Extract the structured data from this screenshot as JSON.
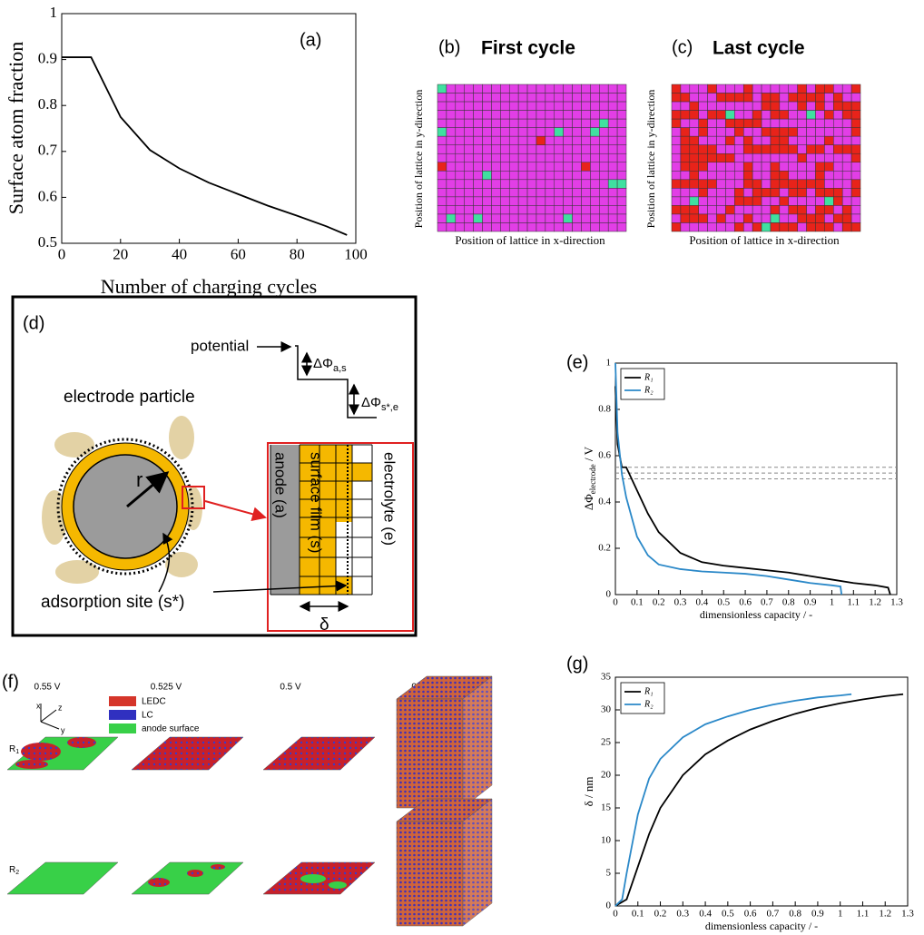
{
  "chart_data": [
    {
      "type": "line",
      "annotation": "(a)",
      "y_label": "Surface atom fraction",
      "x_label": "Number of charging cycles",
      "x": [
        0,
        10,
        20,
        30,
        40,
        50,
        60,
        70,
        80,
        90,
        97
      ],
      "values": [
        0.905,
        0.905,
        0.775,
        0.703,
        0.663,
        0.632,
        0.607,
        0.582,
        0.56,
        0.537,
        0.518
      ],
      "color": "#000000",
      "xlim": [
        0,
        100
      ],
      "ylim": [
        0.5,
        1
      ],
      "xticks": [
        0,
        20,
        40,
        60,
        80,
        100
      ],
      "yticks": [
        0.5,
        0.6,
        0.7,
        0.8,
        0.9,
        1
      ]
    },
    {
      "type": "line",
      "annotation": "(e)",
      "y_label": {
        "main": "ΔΦ",
        "sub": "electrode",
        "rest": " / V"
      },
      "x_label": "dimensionless capacity / -",
      "series": [
        {
          "name": "R₁",
          "color": "#000000",
          "x": [
            0,
            0.01,
            0.03,
            0.05,
            0.1,
            0.15,
            0.2,
            0.3,
            0.4,
            0.5,
            0.6,
            0.7,
            0.8,
            0.9,
            1.0,
            1.1,
            1.2,
            1.26,
            1.27
          ],
          "values": [
            0.9,
            0.65,
            0.55,
            0.55,
            0.45,
            0.35,
            0.27,
            0.18,
            0.14,
            0.125,
            0.115,
            0.105,
            0.095,
            0.08,
            0.065,
            0.05,
            0.04,
            0.03,
            0.0
          ]
        },
        {
          "name": "R₂",
          "color": "#2a88c8",
          "x": [
            0,
            0.01,
            0.03,
            0.05,
            0.1,
            0.15,
            0.2,
            0.3,
            0.4,
            0.5,
            0.6,
            0.7,
            0.8,
            0.9,
            1.0,
            1.04,
            1.045
          ],
          "values": [
            1.0,
            0.7,
            0.52,
            0.42,
            0.25,
            0.17,
            0.13,
            0.11,
            0.1,
            0.095,
            0.09,
            0.08,
            0.065,
            0.05,
            0.04,
            0.035,
            0.0
          ]
        }
      ],
      "reference_lines": [
        0.55,
        0.525,
        0.5
      ],
      "legend": "upper left",
      "xlim": [
        0,
        1.3
      ],
      "ylim": [
        0,
        1
      ],
      "xticks": [
        0,
        0.1,
        0.2,
        0.3,
        0.4,
        0.5,
        0.6,
        0.7,
        0.8,
        0.9,
        1,
        1.1,
        1.2,
        1.3
      ],
      "yticks": [
        0,
        0.2,
        0.4,
        0.6,
        0.8,
        1
      ]
    },
    {
      "type": "line",
      "annotation": "(g)",
      "y_label": "δ / nm",
      "x_label": "dimensionless capacity / -",
      "series": [
        {
          "name": "R₁",
          "color": "#000000",
          "x": [
            0,
            0.05,
            0.1,
            0.15,
            0.2,
            0.3,
            0.4,
            0.5,
            0.6,
            0.7,
            0.8,
            0.9,
            1.0,
            1.1,
            1.2,
            1.28
          ],
          "values": [
            0,
            1,
            6,
            11,
            15,
            20,
            23.2,
            25.3,
            27,
            28.3,
            29.4,
            30.3,
            31,
            31.6,
            32.1,
            32.4
          ]
        },
        {
          "name": "R₂",
          "color": "#2a88c8",
          "x": [
            0,
            0.03,
            0.05,
            0.1,
            0.15,
            0.2,
            0.3,
            0.4,
            0.5,
            0.6,
            0.7,
            0.8,
            0.9,
            1.0,
            1.05
          ],
          "values": [
            0,
            1,
            5,
            14,
            19.5,
            22.5,
            25.8,
            27.8,
            29,
            30,
            30.8,
            31.4,
            31.9,
            32.2,
            32.4
          ]
        }
      ],
      "legend": "upper left",
      "xlim": [
        0,
        1.3
      ],
      "ylim": [
        0,
        35
      ],
      "xticks": [
        0,
        0.1,
        0.2,
        0.3,
        0.4,
        0.5,
        0.6,
        0.7,
        0.8,
        0.9,
        1,
        1.1,
        1.2,
        1.3
      ],
      "yticks": [
        0,
        5,
        10,
        15,
        20,
        25,
        30,
        35
      ]
    }
  ],
  "panel_b": {
    "label": "(b)",
    "title": "First cycle",
    "y_label": "Position of lattice in y-direction",
    "x_label": "Position of lattice in x-direction"
  },
  "panel_c": {
    "label": "(c)",
    "title": "Last cycle",
    "y_label": "Position of lattice in y-direction",
    "x_label": "Position of lattice in x-direction"
  },
  "panel_d": {
    "label": "(d)",
    "potential": "potential",
    "delta_as": {
      "main": "ΔΦ",
      "sub": "a,s"
    },
    "delta_se": {
      "main": "ΔΦ",
      "sub": "s*,e"
    },
    "electrode_particle": "electrode particle",
    "r": "r",
    "anode": "anode (a)",
    "film": "surface film (s)",
    "electrolyte": "electrolyte (e)",
    "adsorption": "adsorption site (s*)",
    "delta": "δ"
  },
  "panel_f": {
    "label": "(f)",
    "columns": [
      "0.55 V",
      "0.525 V",
      "0.5 V",
      "0.0 V"
    ],
    "legend": [
      "LEDC",
      "LC",
      "anode surface"
    ],
    "rows": [
      {
        "main": "R",
        "sub": "1"
      },
      {
        "main": "R",
        "sub": "2"
      }
    ],
    "axes": [
      "x",
      "z",
      "y"
    ]
  }
}
